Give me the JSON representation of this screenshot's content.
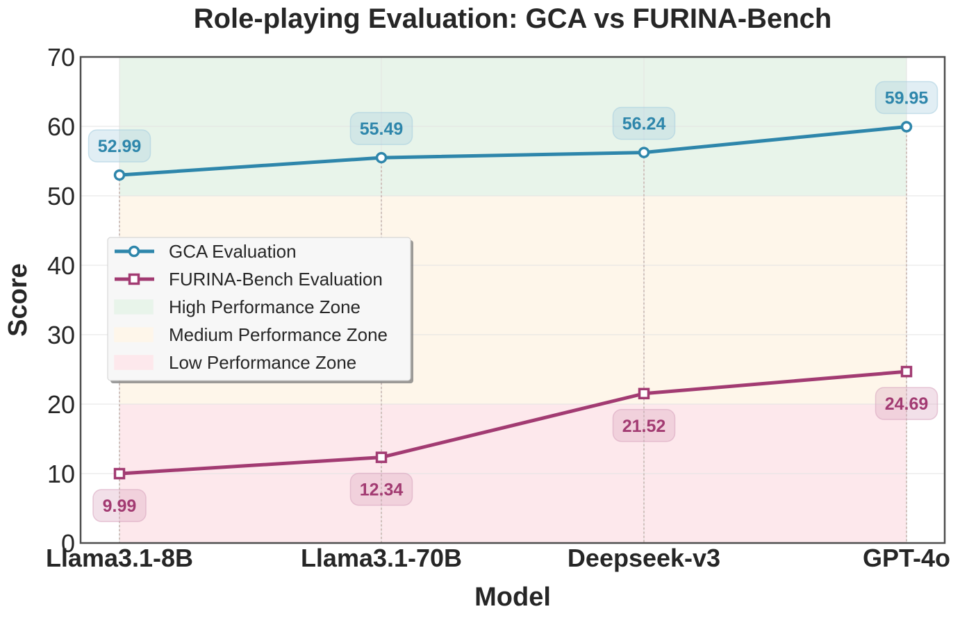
{
  "chart_data": {
    "type": "line",
    "title": "Role-playing Evaluation: GCA vs FURINA-Bench",
    "xlabel": "Model",
    "ylabel": "Score",
    "categories": [
      "Llama3.1-8B",
      "Llama3.1-70B",
      "Deepseek-v3",
      "GPT-4o"
    ],
    "ylim": [
      0,
      70
    ],
    "yticks": [
      "0",
      "10",
      "20",
      "30",
      "40",
      "50",
      "60",
      "70"
    ],
    "grid": true,
    "legend_position": "center-left",
    "series": [
      {
        "name": "GCA Evaluation",
        "color": "#2e86ab",
        "marker": "circle",
        "values": [
          52.99,
          55.49,
          56.24,
          59.95
        ],
        "labels": [
          "52.99",
          "55.49",
          "56.24",
          "59.95"
        ]
      },
      {
        "name": "FURINA-Bench Evaluation",
        "color": "#a23b72",
        "marker": "square",
        "values": [
          9.99,
          12.34,
          21.52,
          24.69
        ],
        "labels": [
          "9.99",
          "12.34",
          "21.52",
          "24.69"
        ]
      }
    ],
    "zones": [
      {
        "name": "High Performance Zone",
        "from": 50,
        "to": 70,
        "color": "#e8f4ea"
      },
      {
        "name": "Medium Performance Zone",
        "from": 20,
        "to": 50,
        "color": "#fef6ea"
      },
      {
        "name": "Low Performance Zone",
        "from": 0,
        "to": 20,
        "color": "#fde8ec"
      }
    ]
  }
}
